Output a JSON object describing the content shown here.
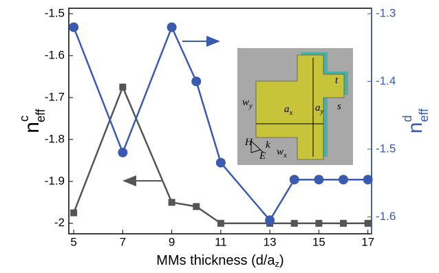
{
  "chart_data": {
    "type": "line",
    "x_label": {
      "main": "MMs thickness (d/a",
      "sub": "z",
      "tail": ")"
    },
    "y_label": {
      "main": "n",
      "sup": "c",
      "sub": "eff"
    },
    "y2_label": {
      "main": "n",
      "sup": "d",
      "sub": "eff"
    },
    "xlim": [
      4.8,
      17.15
    ],
    "xticks": [
      5,
      7,
      9,
      11,
      13,
      15,
      17
    ],
    "ylim": [
      -2.025,
      -1.487
    ],
    "yticks": [
      -1.5,
      -1.6,
      -1.7,
      -1.8,
      -1.9,
      -2
    ],
    "y2lim": [
      -1.625,
      -1.292
    ],
    "y2ticks": [
      -1.3,
      -1.4,
      -1.5,
      -1.6
    ],
    "series": [
      {
        "color": "#555555",
        "marker": "square",
        "x": [
          5,
          7,
          9,
          10,
          11,
          13,
          14,
          15,
          16,
          17
        ],
        "values": [
          -1.975,
          -1.675,
          -1.95,
          -1.96,
          -2.0,
          -2.0,
          -2.0,
          -2.0,
          -2.0,
          -2.0
        ]
      },
      {
        "color": "#3a5ab0",
        "marker": "circle",
        "axis": "y2",
        "x": [
          5,
          7,
          9,
          10,
          11,
          13,
          14,
          15,
          16,
          17
        ],
        "values": [
          -1.32,
          -1.505,
          -1.32,
          -1.4,
          -1.52,
          -1.605,
          -1.545,
          -1.545,
          -1.545,
          -1.545
        ]
      }
    ],
    "inset_labels": [
      {
        "main": "w",
        "sub": "y"
      },
      {
        "main": "a",
        "sub": "x"
      },
      {
        "main": "a",
        "sub": "y"
      },
      {
        "main": "t",
        "sub": ""
      },
      {
        "main": "s",
        "sub": ""
      },
      {
        "main": "w",
        "sub": "x"
      },
      {
        "main": "H",
        "sub": ""
      },
      {
        "main": "k",
        "sub": ""
      },
      {
        "main": "E",
        "sub": ""
      }
    ]
  }
}
